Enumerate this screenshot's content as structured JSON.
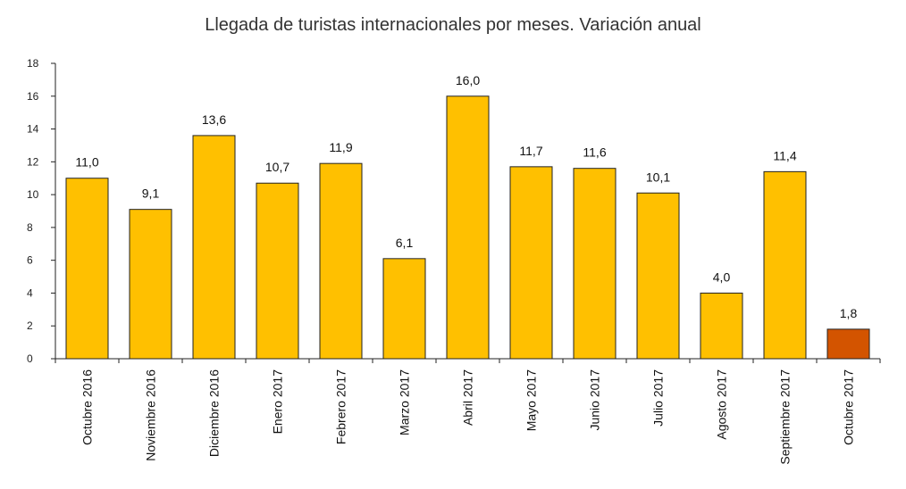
{
  "chart_data": {
    "type": "bar",
    "title": "Llegada de turistas internacionales por meses. Variación anual",
    "xlabel": "",
    "ylabel": "",
    "ylim": [
      0,
      18
    ],
    "yticks": [
      0,
      2,
      4,
      6,
      8,
      10,
      12,
      14,
      16,
      18
    ],
    "grid": false,
    "legend": "none",
    "categories": [
      "Octubre 2016",
      "Noviembre 2016",
      "Diciembre 2016",
      "Enero 2017",
      "Febrero 2017",
      "Marzo 2017",
      "Abril 2017",
      "Mayo 2017",
      "Junio 2017",
      "Julio 2017",
      "Agosto 2017",
      "Septiembre 2017",
      "Octubre 2017"
    ],
    "values": [
      11.0,
      9.1,
      13.6,
      10.7,
      11.9,
      6.1,
      16.0,
      11.7,
      11.6,
      10.1,
      4.0,
      11.4,
      1.8
    ],
    "value_labels": [
      "11,0",
      "9,1",
      "13,6",
      "10,7",
      "11,9",
      "6,1",
      "16,0",
      "11,7",
      "11,6",
      "10,1",
      "4,0",
      "11,4",
      "1,8"
    ],
    "colors": {
      "bar": "#FFC000",
      "highlight": "#D35400",
      "bar_stroke": "#222222"
    },
    "highlight_index": 12
  }
}
